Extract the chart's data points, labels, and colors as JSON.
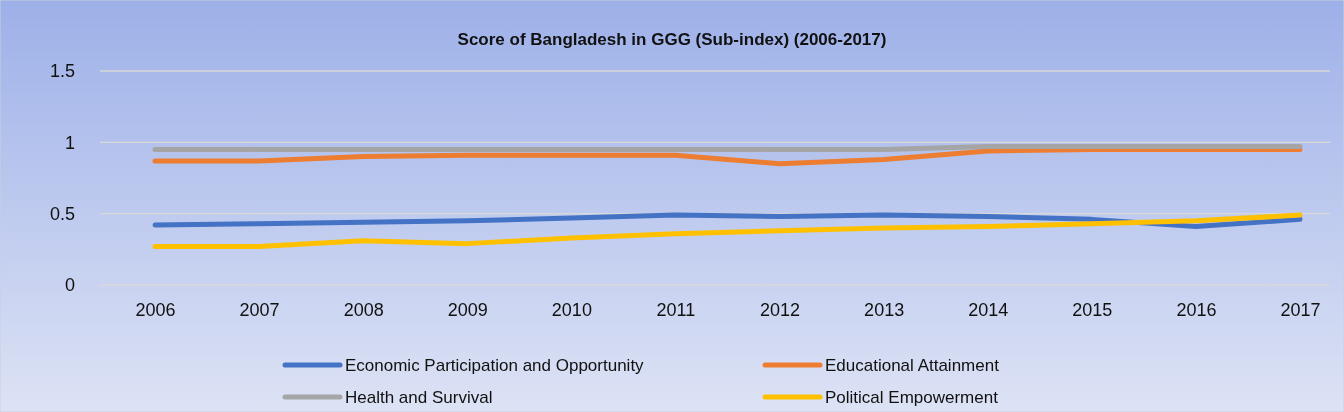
{
  "chart_data": {
    "type": "line",
    "title": "Score of Bangladesh in GGG (Sub-index) (2006-2017)",
    "categories": [
      "2006",
      "2007",
      "2008",
      "2009",
      "2010",
      "2011",
      "2012",
      "2013",
      "2014",
      "2015",
      "2016",
      "2017"
    ],
    "series": [
      {
        "name": "Economic Participation and Opportunity",
        "color": "#4472c4",
        "values": [
          0.42,
          0.43,
          0.44,
          0.45,
          0.47,
          0.49,
          0.48,
          0.49,
          0.48,
          0.46,
          0.41,
          0.46
        ]
      },
      {
        "name": "Educational Attainment",
        "color": "#ed7d31",
        "values": [
          0.87,
          0.87,
          0.9,
          0.91,
          0.91,
          0.91,
          0.85,
          0.88,
          0.94,
          0.95,
          0.95,
          0.95
        ]
      },
      {
        "name": "Health and Survival",
        "color": "#a5a5a5",
        "values": [
          0.95,
          0.95,
          0.95,
          0.95,
          0.95,
          0.95,
          0.95,
          0.95,
          0.97,
          0.97,
          0.97,
          0.97
        ]
      },
      {
        "name": "Political Empowerment",
        "color": "#ffc000",
        "values": [
          0.27,
          0.27,
          0.31,
          0.29,
          0.33,
          0.36,
          0.38,
          0.4,
          0.41,
          0.43,
          0.45,
          0.49
        ]
      }
    ],
    "ylim": [
      0,
      1.5
    ],
    "yticks": [
      0,
      0.5,
      1,
      1.5
    ],
    "grid": "y",
    "legend": "bottom",
    "marker": "none",
    "line_style": "solid"
  }
}
